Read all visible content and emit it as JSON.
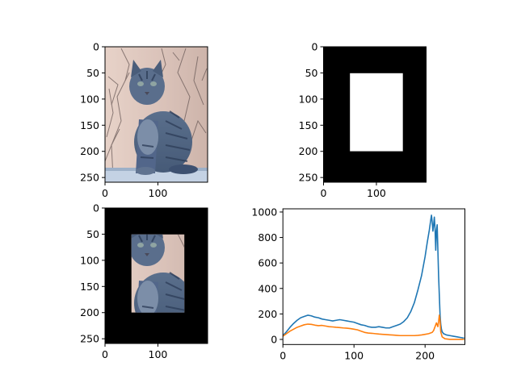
{
  "chart_data": [
    {
      "type": "image",
      "id": "original",
      "subject": "tabby cat sitting in front of bare branches",
      "xlim": [
        0,
        194
      ],
      "ylim": [
        259,
        0
      ],
      "xticks": [
        0,
        100
      ],
      "yticks": [
        0,
        50,
        100,
        150,
        200,
        250
      ]
    },
    {
      "type": "image",
      "id": "mask",
      "description": "black image with white rectangle",
      "mask_rect": {
        "x0": 50,
        "x1": 150,
        "y0": 50,
        "y1": 200
      },
      "xlim": [
        0,
        194
      ],
      "ylim": [
        259,
        0
      ],
      "xticks": [
        0,
        100
      ],
      "yticks": [
        0,
        50,
        100,
        150,
        200,
        250
      ]
    },
    {
      "type": "image",
      "id": "masked",
      "subject": "cat image visible only inside the mask rectangle, black elsewhere",
      "mask_rect": {
        "x0": 50,
        "x1": 150,
        "y0": 50,
        "y1": 200
      },
      "xlim": [
        0,
        194
      ],
      "ylim": [
        259,
        0
      ],
      "xticks": [
        0,
        100
      ],
      "yticks": [
        0,
        50,
        100,
        150,
        200,
        250
      ]
    },
    {
      "type": "line",
      "id": "histogram",
      "xlim": [
        0,
        256
      ],
      "ylim": [
        -40,
        1025
      ],
      "xticks": [
        0,
        100,
        200
      ],
      "yticks": [
        0,
        200,
        400,
        600,
        800,
        1000
      ],
      "series": [
        {
          "color": "#1f77b4",
          "x": [
            0,
            5,
            10,
            15,
            20,
            25,
            30,
            35,
            40,
            45,
            50,
            55,
            60,
            65,
            70,
            75,
            80,
            85,
            90,
            95,
            100,
            105,
            110,
            115,
            120,
            125,
            130,
            135,
            140,
            145,
            150,
            155,
            160,
            165,
            170,
            175,
            180,
            185,
            190,
            195,
            200,
            203,
            206,
            208,
            209,
            210,
            211,
            212,
            213,
            214,
            215,
            216,
            217,
            218,
            219,
            220,
            221,
            222,
            223,
            224,
            226,
            230,
            235,
            240,
            245,
            250,
            255
          ],
          "values": [
            30,
            60,
            95,
            125,
            150,
            170,
            180,
            190,
            185,
            175,
            170,
            160,
            155,
            150,
            145,
            150,
            155,
            150,
            145,
            140,
            135,
            125,
            115,
            110,
            100,
            95,
            95,
            100,
            95,
            90,
            90,
            100,
            110,
            120,
            140,
            170,
            220,
            290,
            390,
            500,
            650,
            760,
            860,
            940,
            975,
            920,
            850,
            900,
            960,
            870,
            700,
            850,
            900,
            700,
            500,
            350,
            200,
            120,
            80,
            60,
            45,
            35,
            30,
            25,
            20,
            15,
            10
          ]
        },
        {
          "color": "#ff7f0e",
          "x": [
            0,
            5,
            10,
            15,
            20,
            25,
            30,
            35,
            40,
            45,
            50,
            55,
            60,
            65,
            70,
            75,
            80,
            85,
            90,
            95,
            100,
            105,
            110,
            115,
            120,
            125,
            130,
            135,
            140,
            145,
            150,
            155,
            160,
            165,
            170,
            175,
            180,
            185,
            190,
            195,
            200,
            205,
            210,
            212,
            214,
            216,
            218,
            219,
            220,
            221,
            222,
            224,
            228,
            235,
            245,
            255
          ],
          "values": [
            25,
            45,
            65,
            80,
            95,
            105,
            115,
            120,
            118,
            112,
            108,
            110,
            105,
            100,
            98,
            95,
            93,
            90,
            88,
            85,
            80,
            75,
            65,
            55,
            50,
            48,
            45,
            42,
            40,
            38,
            36,
            34,
            32,
            30,
            30,
            30,
            30,
            30,
            32,
            35,
            40,
            45,
            55,
            70,
            100,
            130,
            100,
            140,
            190,
            150,
            60,
            20,
            5,
            0,
            0,
            0
          ]
        }
      ]
    }
  ]
}
